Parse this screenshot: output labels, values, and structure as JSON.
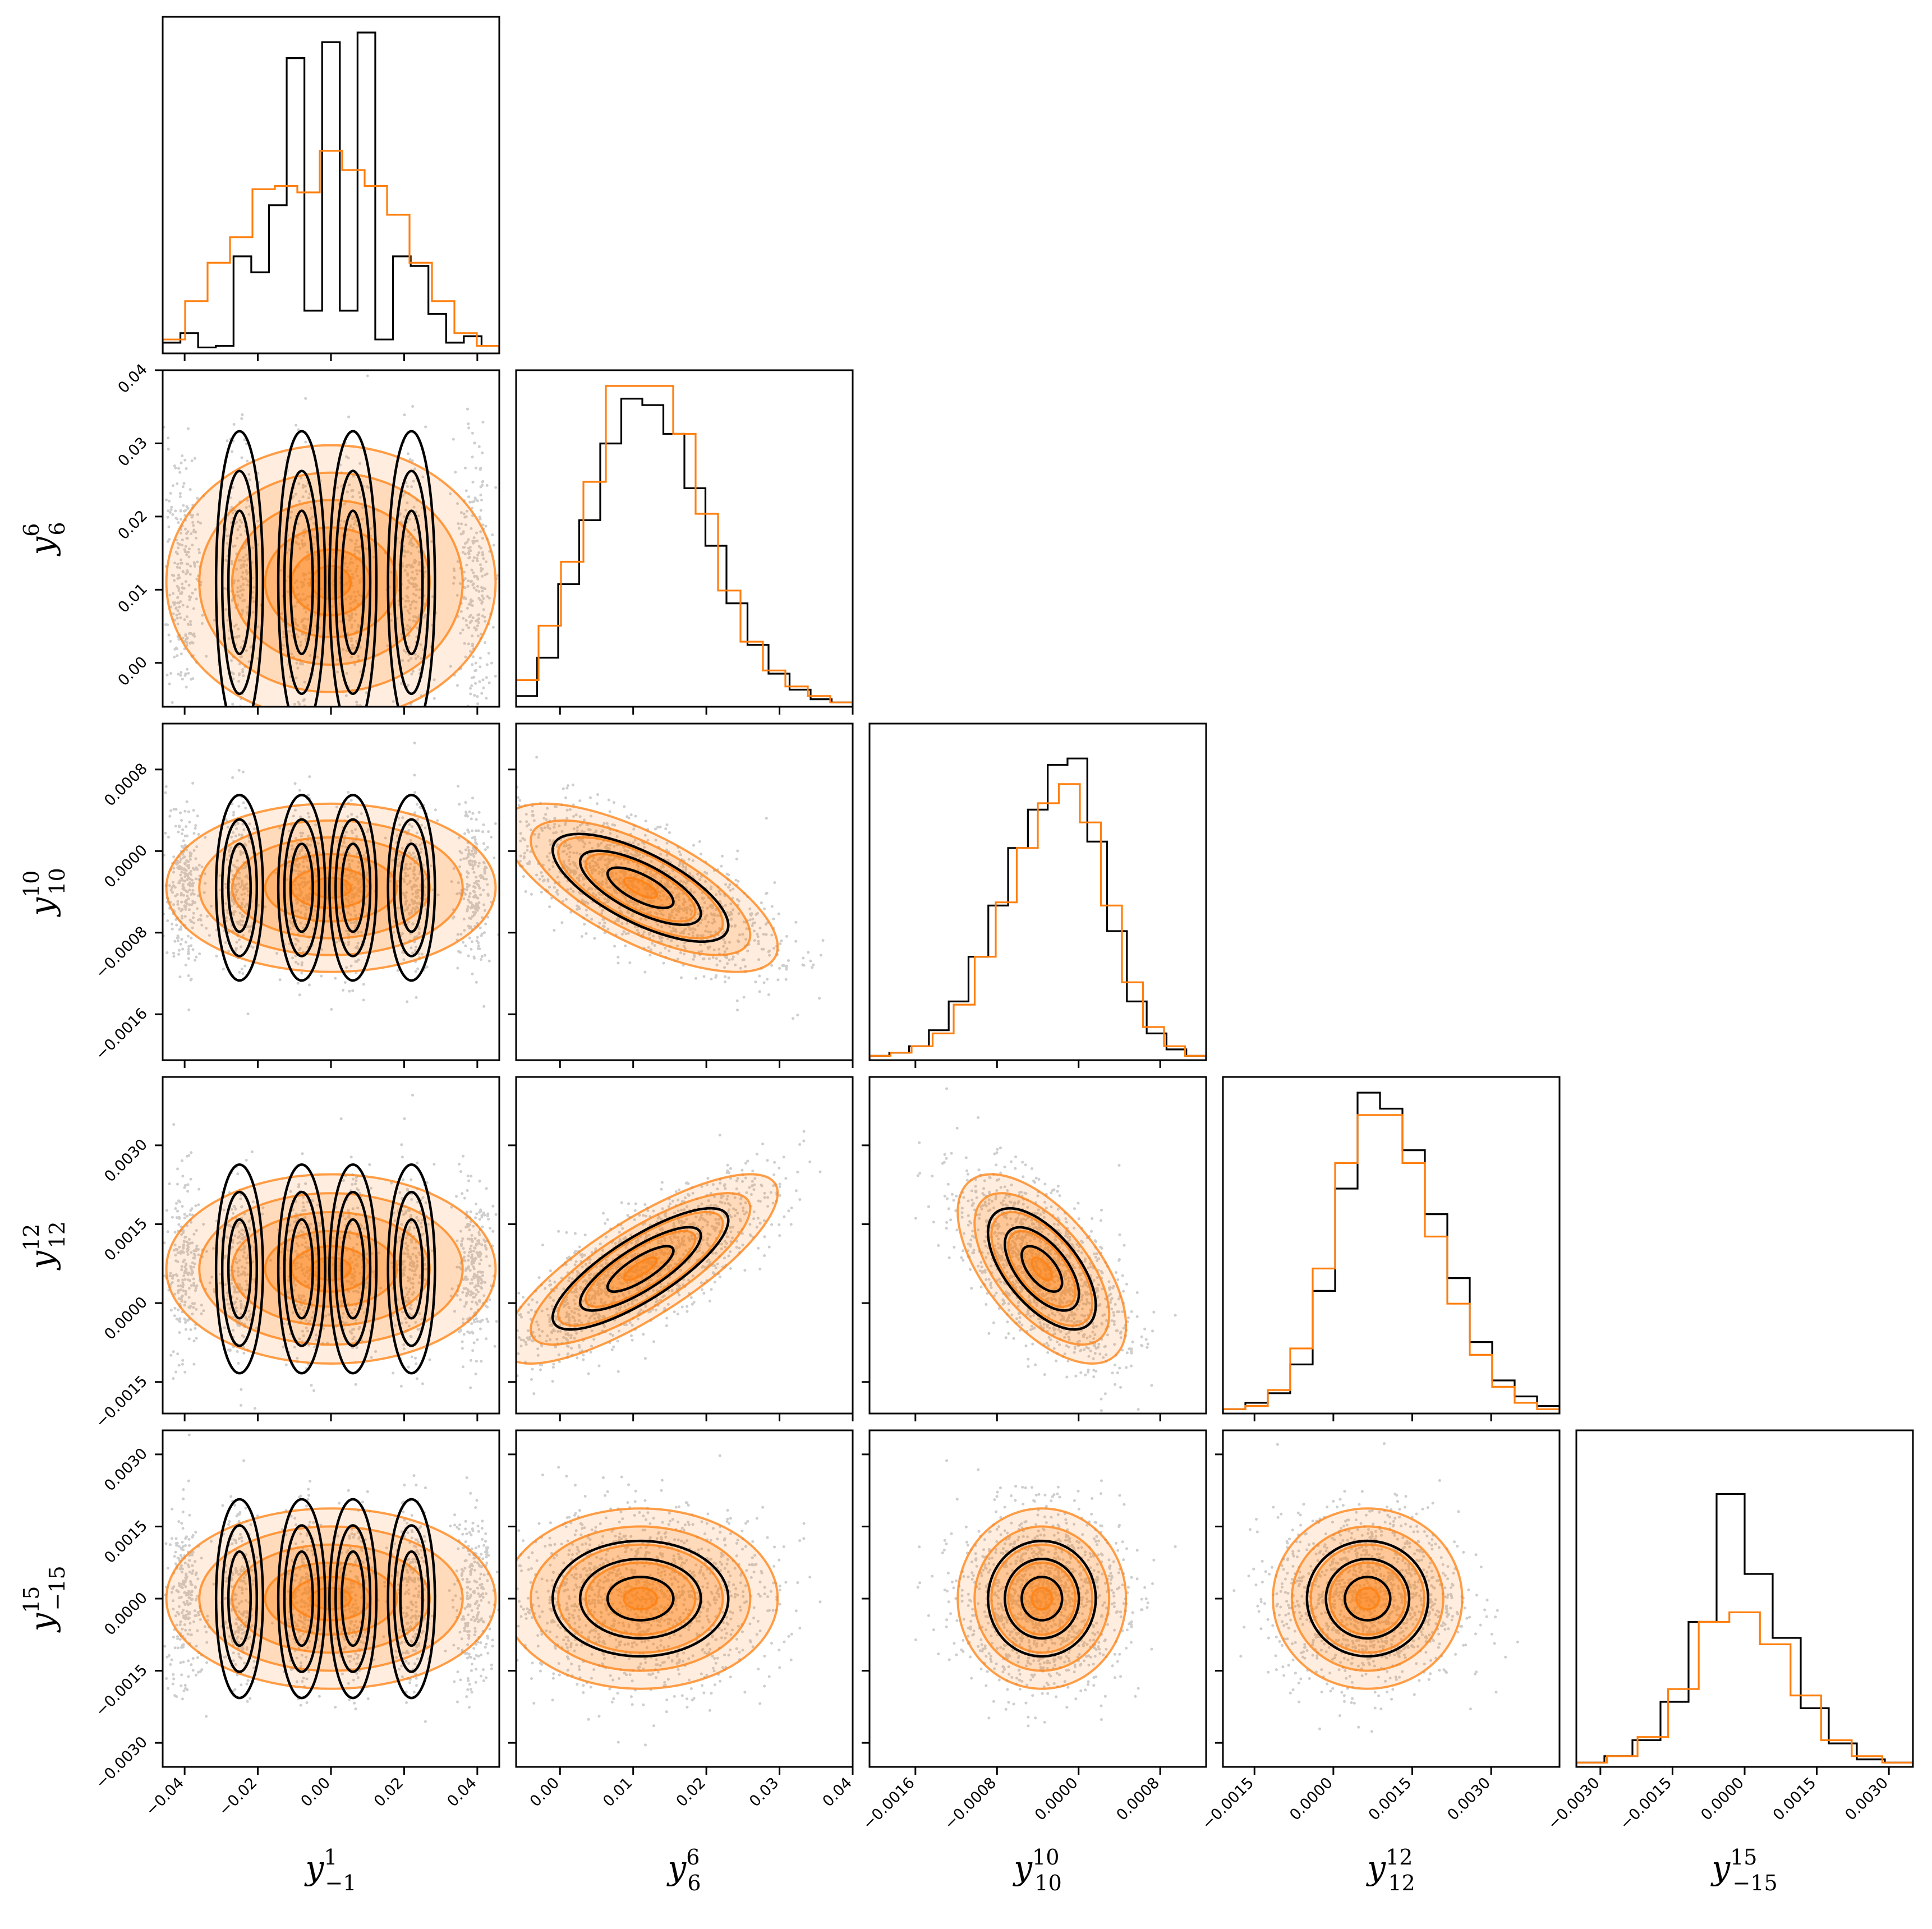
{
  "chart_data": {
    "type": "corner",
    "title": "",
    "colors": {
      "samples_a": "#000000",
      "samples_b": "#ff7f0e"
    },
    "parameters": [
      {
        "label_base": "y",
        "label_sup": "1",
        "label_sub": "−1",
        "range": [
          -0.046,
          0.046
        ],
        "mean": 0.0,
        "sd": 0.018,
        "ticks": [
          -0.04,
          -0.02,
          0.0,
          0.02,
          0.04
        ],
        "tick_labels": [
          "−0.04",
          "−0.02",
          "0.00",
          "0.02",
          "0.04"
        ]
      },
      {
        "label_base": "y",
        "label_sup": "6",
        "label_sub": "6",
        "range": [
          -0.006,
          0.04
        ],
        "mean": 0.011,
        "sd": 0.0075,
        "ticks": [
          0.0,
          0.01,
          0.02,
          0.03,
          0.04
        ],
        "tick_labels": [
          "0.00",
          "0.01",
          "0.02",
          "0.03",
          "0.04"
        ]
      },
      {
        "label_base": "y",
        "label_sup": "10",
        "label_sub": "10",
        "range": [
          -0.00205,
          0.00125
        ],
        "mean": -0.00036,
        "sd": 0.00033,
        "ticks": [
          -0.0016,
          -0.0008,
          0.0,
          0.0008
        ],
        "tick_labels": [
          "−0.0016",
          "−0.0008",
          "0.0000",
          "0.0008"
        ]
      },
      {
        "label_base": "y",
        "label_sup": "12",
        "label_sub": "12",
        "range": [
          -0.0021,
          0.0043
        ],
        "mean": 0.00065,
        "sd": 0.00072,
        "ticks": [
          -0.0015,
          0.0,
          0.0015,
          0.003
        ],
        "tick_labels": [
          "−0.0015",
          "0.0000",
          "0.0015",
          "0.0030"
        ]
      },
      {
        "label_base": "y",
        "label_sup": "15",
        "label_sub": "−15",
        "range": [
          -0.0035,
          0.0035
        ],
        "mean": 0.0,
        "sd": 0.00075,
        "ticks": [
          -0.003,
          -0.0015,
          0.0,
          0.0015,
          0.003
        ],
        "tick_labels": [
          "−0.0030",
          "−0.0015",
          "0.0000",
          "0.0015",
          "0.0030"
        ]
      }
    ],
    "histograms": [
      {
        "series_a": [
          0.03,
          0.06,
          0.015,
          0.02,
          0.3,
          0.25,
          0.46,
          0.92,
          0.13,
          0.97,
          0.13,
          1.0,
          0.04,
          0.3,
          0.27,
          0.12,
          0.03,
          0.05,
          0.02
        ],
        "series_b": [
          0.04,
          0.16,
          0.28,
          0.36,
          0.51,
          0.52,
          0.5,
          0.63,
          0.57,
          0.52,
          0.43,
          0.28,
          0.16,
          0.06,
          0.02
        ]
      },
      {
        "series_a": [
          0.03,
          0.15,
          0.38,
          0.58,
          0.82,
          0.96,
          0.94,
          0.85,
          0.68,
          0.5,
          0.32,
          0.19,
          0.1,
          0.05,
          0.02,
          0.01
        ],
        "series_b": [
          0.08,
          0.25,
          0.45,
          0.7,
          1.0,
          1.0,
          1.0,
          0.85,
          0.6,
          0.36,
          0.2,
          0.11,
          0.06,
          0.03,
          0.01
        ]
      },
      {
        "series_a": [
          0.01,
          0.02,
          0.04,
          0.09,
          0.18,
          0.32,
          0.48,
          0.66,
          0.78,
          0.92,
          0.94,
          0.68,
          0.4,
          0.18,
          0.08,
          0.03,
          0.01
        ],
        "series_b": [
          0.01,
          0.02,
          0.04,
          0.08,
          0.17,
          0.32,
          0.49,
          0.66,
          0.8,
          0.86,
          0.74,
          0.48,
          0.24,
          0.1,
          0.04,
          0.01
        ]
      },
      {
        "series_a": [
          0.01,
          0.03,
          0.06,
          0.15,
          0.38,
          0.7,
          1.0,
          0.95,
          0.82,
          0.62,
          0.42,
          0.22,
          0.1,
          0.05,
          0.02
        ],
        "series_b": [
          0.01,
          0.02,
          0.07,
          0.2,
          0.45,
          0.78,
          0.93,
          0.93,
          0.78,
          0.55,
          0.34,
          0.18,
          0.08,
          0.03,
          0.01
        ]
      },
      {
        "series_a": [
          0.01,
          0.03,
          0.08,
          0.2,
          0.45,
          0.85,
          0.6,
          0.4,
          0.18,
          0.07,
          0.02,
          0.01
        ],
        "series_b": [
          0.01,
          0.03,
          0.09,
          0.24,
          0.45,
          0.48,
          0.38,
          0.22,
          0.08,
          0.03,
          0.01
        ]
      }
    ],
    "correlations": {
      "1-0": 0.0,
      "2-0": 0.0,
      "3-0": 0.0,
      "4-0": 0.0,
      "2-1": -0.7,
      "3-1": 0.8,
      "4-1": 0.0,
      "3-2": -0.6,
      "4-2": 0.0,
      "4-3": 0.0
    },
    "grid": false,
    "legend": "none"
  }
}
